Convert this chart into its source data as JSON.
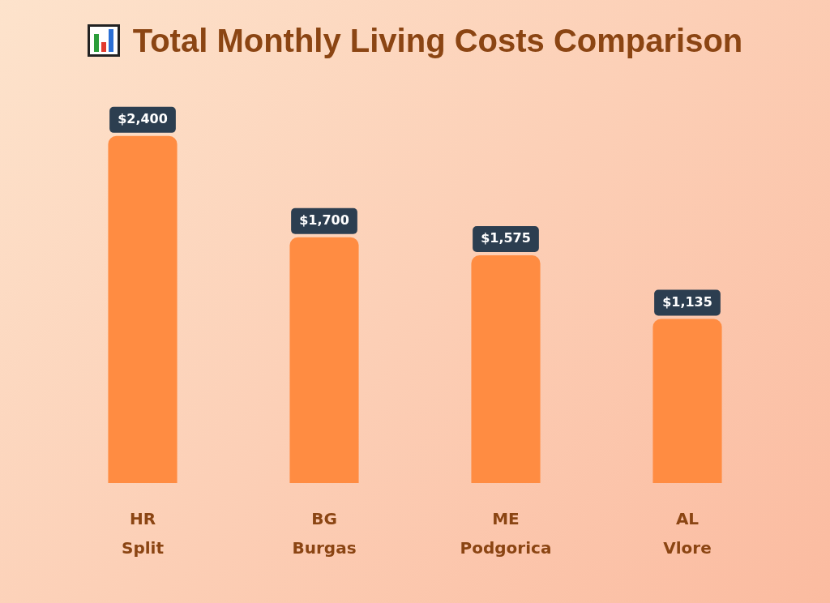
{
  "chart_data": {
    "type": "bar",
    "title": "Total Monthly Living Costs Comparison",
    "categories": [
      "HR\nSplit",
      "BG\nBurgas",
      "ME\nPodgorica",
      "AL\nVlore"
    ],
    "values": [
      2400,
      1700,
      1575,
      1135
    ],
    "value_labels": [
      "$2,400",
      "$1,700",
      "$1,575",
      "$1,135"
    ],
    "color": "#ff8c42",
    "grid": false,
    "legend": false,
    "tick_labels": "x"
  }
}
